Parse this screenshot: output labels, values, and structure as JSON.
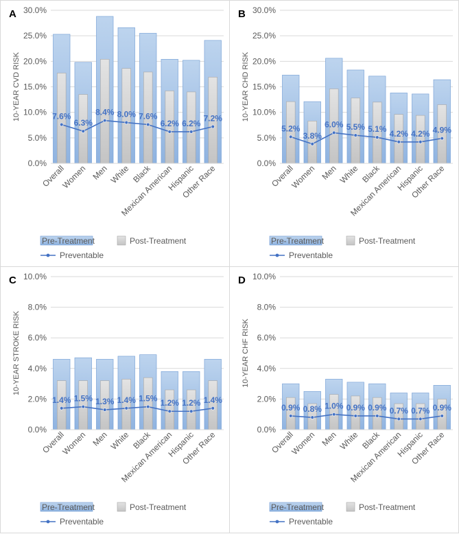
{
  "legend": {
    "pre": "Pre-Treatment",
    "post": "Post-Treatment",
    "preventable": "Preventable"
  },
  "colors": {
    "pre_top": "#bdd4ee",
    "pre_bottom": "#8fb3e0",
    "pre_stroke": "#6f9bd3",
    "post_top": "#e3e3e3",
    "post_bottom": "#c4c4c4",
    "post_stroke": "#a6a6a6",
    "line": "#4472c4",
    "grid": "#d9d9d9",
    "text": "#595959"
  },
  "chart_data": [
    {
      "panel": "A",
      "type": "bar",
      "ylabel": "10-YEAR CVD RISK",
      "ylim": [
        0,
        30
      ],
      "yticks": [
        "0.0%",
        "5.0%",
        "10.0%",
        "15.0%",
        "20.0%",
        "25.0%",
        "30.0%"
      ],
      "categories": [
        "Overall",
        "Women",
        "Men",
        "White",
        "Black",
        "Mexican American",
        "Hispanic",
        "Other Race"
      ],
      "series": [
        {
          "name": "Pre-Treatment",
          "values": [
            25.3,
            19.8,
            28.8,
            26.6,
            25.5,
            20.4,
            20.2,
            24.1
          ]
        },
        {
          "name": "Post-Treatment",
          "values": [
            17.7,
            13.5,
            20.4,
            18.6,
            17.9,
            14.2,
            14.0,
            16.9
          ]
        },
        {
          "name": "Preventable",
          "values": [
            7.6,
            6.3,
            8.4,
            8.0,
            7.6,
            6.2,
            6.2,
            7.2
          ],
          "labels": [
            "7.6%",
            "6.3%",
            "8.4%",
            "8.0%",
            "7.6%",
            "6.2%",
            "6.2%",
            "7.2%"
          ]
        }
      ]
    },
    {
      "panel": "B",
      "type": "bar",
      "ylabel": "10-YEAR CHD RISK",
      "ylim": [
        0,
        30
      ],
      "yticks": [
        "0.0%",
        "5.0%",
        "10.0%",
        "15.0%",
        "20.0%",
        "25.0%",
        "30.0%"
      ],
      "categories": [
        "Overall",
        "Women",
        "Men",
        "White",
        "Black",
        "Mexican American",
        "Hispanic",
        "Other Race"
      ],
      "series": [
        {
          "name": "Pre-Treatment",
          "values": [
            17.3,
            12.1,
            20.6,
            18.3,
            17.1,
            13.8,
            13.6,
            16.4
          ]
        },
        {
          "name": "Post-Treatment",
          "values": [
            12.1,
            8.3,
            14.6,
            12.8,
            12.0,
            9.6,
            9.4,
            11.5
          ]
        },
        {
          "name": "Preventable",
          "values": [
            5.2,
            3.8,
            6.0,
            5.5,
            5.1,
            4.2,
            4.2,
            4.9
          ],
          "labels": [
            "5.2%",
            "3.8%",
            "6.0%",
            "5.5%",
            "5.1%",
            "4.2%",
            "4.2%",
            "4.9%"
          ]
        }
      ]
    },
    {
      "panel": "C",
      "type": "bar",
      "ylabel": "10-YEAR STROKE RISK",
      "ylim": [
        0,
        10
      ],
      "yticks": [
        "0.0%",
        "2.0%",
        "4.0%",
        "6.0%",
        "8.0%",
        "10.0%"
      ],
      "categories": [
        "Overall",
        "Women",
        "Men",
        "White",
        "Black",
        "Mexican American",
        "Hispanic",
        "Other Race"
      ],
      "series": [
        {
          "name": "Pre-Treatment",
          "values": [
            4.6,
            4.7,
            4.6,
            4.8,
            4.9,
            3.8,
            3.8,
            4.6
          ]
        },
        {
          "name": "Post-Treatment",
          "values": [
            3.2,
            3.2,
            3.2,
            3.3,
            3.4,
            2.6,
            2.6,
            3.2
          ]
        },
        {
          "name": "Preventable",
          "values": [
            1.4,
            1.5,
            1.3,
            1.4,
            1.5,
            1.2,
            1.2,
            1.4
          ],
          "labels": [
            "1.4%",
            "1.5%",
            "1.3%",
            "1.4%",
            "1.5%",
            "1.2%",
            "1.2%",
            "1.4%"
          ]
        }
      ]
    },
    {
      "panel": "D",
      "type": "bar",
      "ylabel": "10-YEAR CHF RISK",
      "ylim": [
        0,
        10
      ],
      "yticks": [
        "0.0%",
        "2.0%",
        "4.0%",
        "6.0%",
        "8.0%",
        "10.0%"
      ],
      "categories": [
        "Overall",
        "Women",
        "Men",
        "White",
        "Black",
        "Mexican American",
        "Hispanic",
        "Other Race"
      ],
      "series": [
        {
          "name": "Pre-Treatment",
          "values": [
            3.0,
            2.5,
            3.3,
            3.1,
            3.0,
            2.4,
            2.4,
            2.9
          ]
        },
        {
          "name": "Post-Treatment",
          "values": [
            2.1,
            1.7,
            2.3,
            2.2,
            2.1,
            1.7,
            1.7,
            2.0
          ]
        },
        {
          "name": "Preventable",
          "values": [
            0.9,
            0.8,
            1.0,
            0.9,
            0.9,
            0.7,
            0.7,
            0.9
          ],
          "labels": [
            "0.9%",
            "0.8%",
            "1.0%",
            "0.9%",
            "0.9%",
            "0.7%",
            "0.7%",
            "0.9%"
          ]
        }
      ]
    }
  ]
}
